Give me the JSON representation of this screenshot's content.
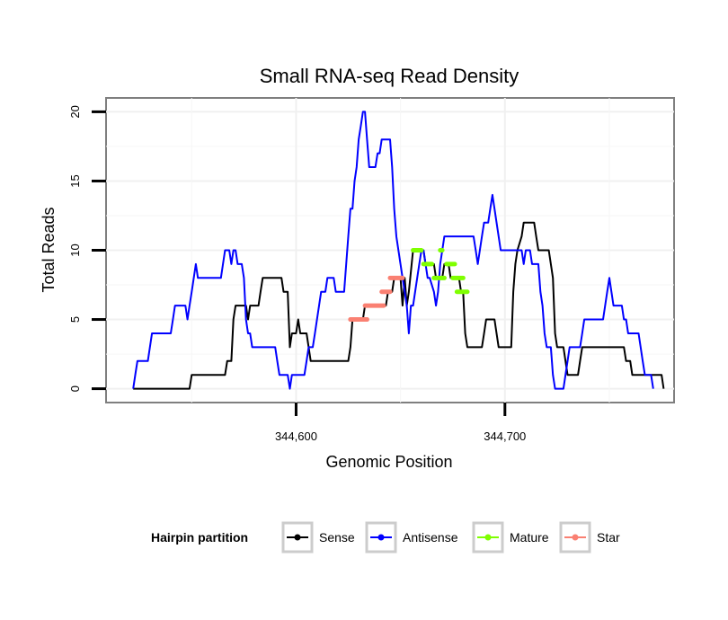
{
  "chart_data": {
    "type": "line",
    "title": "Small RNA-seq Read Density",
    "xlabel": "Genomic Position",
    "ylabel": "Total Reads",
    "xlim": [
      344509,
      344781
    ],
    "ylim": [
      -1,
      21
    ],
    "x_ticks": [
      344600,
      344700
    ],
    "x_tick_labels": [
      "344,600",
      "344,700"
    ],
    "y_ticks": [
      0,
      5,
      10,
      15,
      20
    ],
    "y_tick_labels": [
      "0",
      "5",
      "10",
      "15",
      "20"
    ],
    "grid": true,
    "legend": {
      "title": "Hairpin partition",
      "position": "bottom",
      "entries": [
        {
          "name": "Sense",
          "color": "#000000"
        },
        {
          "name": "Antisense",
          "color": "#0000ff"
        },
        {
          "name": "Mature",
          "color": "#7fff00"
        },
        {
          "name": "Star",
          "color": "#fa8072"
        }
      ]
    },
    "series": [
      {
        "name": "Sense",
        "color": "#000000",
        "points": [
          [
            344522,
            0
          ],
          [
            344549,
            0
          ],
          [
            344550,
            1
          ],
          [
            344566,
            1
          ],
          [
            344567,
            2
          ],
          [
            344569,
            2
          ],
          [
            344570,
            5
          ],
          [
            344571,
            6
          ],
          [
            344576,
            6
          ],
          [
            344577,
            5
          ],
          [
            344578,
            6
          ],
          [
            344582,
            6
          ],
          [
            344583,
            7
          ],
          [
            344584,
            8
          ],
          [
            344593,
            8
          ],
          [
            344594,
            7
          ],
          [
            344596,
            7
          ],
          [
            344597,
            3
          ],
          [
            344598,
            4
          ],
          [
            344600,
            4
          ],
          [
            344601,
            5
          ],
          [
            344602,
            4
          ],
          [
            344605,
            4
          ],
          [
            344606,
            3
          ],
          [
            344607,
            2
          ],
          [
            344625,
            2
          ],
          [
            344626,
            3
          ],
          [
            344627,
            5
          ],
          [
            344632,
            5
          ],
          [
            344633,
            6
          ],
          [
            344643,
            6
          ],
          [
            344644,
            7
          ],
          [
            344646,
            7
          ],
          [
            344647,
            8
          ],
          [
            344650,
            8
          ],
          [
            344651,
            6
          ],
          [
            344652,
            8
          ],
          [
            344653,
            6
          ],
          [
            344654,
            7
          ],
          [
            344656,
            10
          ],
          [
            344661,
            10
          ],
          [
            344662,
            9
          ],
          [
            344666,
            9
          ],
          [
            344667,
            8
          ],
          [
            344670,
            8
          ],
          [
            344671,
            9
          ],
          [
            344673,
            9
          ],
          [
            344674,
            8
          ],
          [
            344678,
            8
          ],
          [
            344679,
            7
          ],
          [
            344680,
            7
          ],
          [
            344681,
            4
          ],
          [
            344682,
            3
          ],
          [
            344689,
            3
          ],
          [
            344690,
            4
          ],
          [
            344691,
            5
          ],
          [
            344695,
            5
          ],
          [
            344696,
            4
          ],
          [
            344697,
            3
          ],
          [
            344703,
            3
          ],
          [
            344704,
            7
          ],
          [
            344705,
            9
          ],
          [
            344706,
            10
          ],
          [
            344708,
            11
          ],
          [
            344709,
            12
          ],
          [
            344714,
            12
          ],
          [
            344715,
            11
          ],
          [
            344716,
            10
          ],
          [
            344721,
            10
          ],
          [
            344722,
            9
          ],
          [
            344723,
            8
          ],
          [
            344724,
            4
          ],
          [
            344725,
            3
          ],
          [
            344728,
            3
          ],
          [
            344729,
            2
          ],
          [
            344730,
            1
          ],
          [
            344735,
            1
          ],
          [
            344736,
            2
          ],
          [
            344737,
            3
          ],
          [
            344757,
            3
          ],
          [
            344758,
            2
          ],
          [
            344760,
            2
          ],
          [
            344761,
            1
          ],
          [
            344775,
            1
          ],
          [
            344776,
            0
          ]
        ]
      },
      {
        "name": "Antisense",
        "color": "#0000ff",
        "points": [
          [
            344522,
            0
          ],
          [
            344523,
            1
          ],
          [
            344524,
            2
          ],
          [
            344529,
            2
          ],
          [
            344530,
            3
          ],
          [
            344531,
            4
          ],
          [
            344540,
            4
          ],
          [
            344541,
            5
          ],
          [
            344542,
            6
          ],
          [
            344547,
            6
          ],
          [
            344548,
            5
          ],
          [
            344549,
            6
          ],
          [
            344550,
            7
          ],
          [
            344552,
            9
          ],
          [
            344553,
            8
          ],
          [
            344564,
            8
          ],
          [
            344565,
            9
          ],
          [
            344566,
            10
          ],
          [
            344568,
            10
          ],
          [
            344569,
            9
          ],
          [
            344570,
            10
          ],
          [
            344571,
            10
          ],
          [
            344572,
            9
          ],
          [
            344574,
            9
          ],
          [
            344575,
            8
          ],
          [
            344576,
            5
          ],
          [
            344577,
            4
          ],
          [
            344578,
            4
          ],
          [
            344579,
            3
          ],
          [
            344590,
            3
          ],
          [
            344591,
            2
          ],
          [
            344592,
            1
          ],
          [
            344596,
            1
          ],
          [
            344597,
            0
          ],
          [
            344598,
            1
          ],
          [
            344604,
            1
          ],
          [
            344605,
            2
          ],
          [
            344606,
            3
          ],
          [
            344608,
            3
          ],
          [
            344609,
            4
          ],
          [
            344610,
            5
          ],
          [
            344611,
            6
          ],
          [
            344612,
            7
          ],
          [
            344614,
            7
          ],
          [
            344615,
            8
          ],
          [
            344618,
            8
          ],
          [
            344619,
            7
          ],
          [
            344623,
            7
          ],
          [
            344624,
            9
          ],
          [
            344625,
            11
          ],
          [
            344626,
            13
          ],
          [
            344627,
            13
          ],
          [
            344628,
            15
          ],
          [
            344629,
            16
          ],
          [
            344630,
            18
          ],
          [
            344631,
            19
          ],
          [
            344632,
            20
          ],
          [
            344633,
            20
          ],
          [
            344634,
            18
          ],
          [
            344635,
            16
          ],
          [
            344638,
            16
          ],
          [
            344639,
            17
          ],
          [
            344640,
            17
          ],
          [
            344641,
            18
          ],
          [
            344645,
            18
          ],
          [
            344646,
            16
          ],
          [
            344647,
            13
          ],
          [
            344648,
            11
          ],
          [
            344650,
            9
          ],
          [
            344651,
            8
          ],
          [
            344652,
            7
          ],
          [
            344653,
            6
          ],
          [
            344654,
            4
          ],
          [
            344655,
            6
          ],
          [
            344656,
            6
          ],
          [
            344657,
            7
          ],
          [
            344658,
            8
          ],
          [
            344659,
            9
          ],
          [
            344660,
            10
          ],
          [
            344661,
            10
          ],
          [
            344662,
            9
          ],
          [
            344663,
            8
          ],
          [
            344664,
            8
          ],
          [
            344666,
            7
          ],
          [
            344667,
            6
          ],
          [
            344668,
            7
          ],
          [
            344669,
            9
          ],
          [
            344670,
            10
          ],
          [
            344671,
            11
          ],
          [
            344685,
            11
          ],
          [
            344686,
            10
          ],
          [
            344687,
            9
          ],
          [
            344688,
            10
          ],
          [
            344689,
            11
          ],
          [
            344690,
            12
          ],
          [
            344692,
            12
          ],
          [
            344693,
            13
          ],
          [
            344694,
            14
          ],
          [
            344695,
            13
          ],
          [
            344696,
            12
          ],
          [
            344697,
            11
          ],
          [
            344698,
            10
          ],
          [
            344708,
            10
          ],
          [
            344709,
            9
          ],
          [
            344710,
            10
          ],
          [
            344712,
            10
          ],
          [
            344713,
            9
          ],
          [
            344716,
            9
          ],
          [
            344717,
            7
          ],
          [
            344718,
            6
          ],
          [
            344719,
            4
          ],
          [
            344720,
            3
          ],
          [
            344722,
            3
          ],
          [
            344723,
            1
          ],
          [
            344724,
            0
          ],
          [
            344728,
            0
          ],
          [
            344729,
            1
          ],
          [
            344730,
            2
          ],
          [
            344731,
            3
          ],
          [
            344736,
            3
          ],
          [
            344737,
            4
          ],
          [
            344738,
            5
          ],
          [
            344747,
            5
          ],
          [
            344748,
            6
          ],
          [
            344749,
            7
          ],
          [
            344750,
            8
          ],
          [
            344751,
            7
          ],
          [
            344752,
            6
          ],
          [
            344756,
            6
          ],
          [
            344757,
            5
          ],
          [
            344758,
            5
          ],
          [
            344759,
            4
          ],
          [
            344764,
            4
          ],
          [
            344765,
            3
          ],
          [
            344766,
            2
          ],
          [
            344767,
            1
          ],
          [
            344770,
            1
          ],
          [
            344771,
            0
          ]
        ]
      },
      {
        "name": "Mature",
        "color": "#7fff00",
        "points": [
          [
            344656,
            10
          ],
          [
            344660,
            10
          ],
          [
            344661,
            9
          ],
          [
            344665,
            9
          ],
          [
            344666,
            8
          ],
          [
            344671,
            8
          ],
          [
            344672,
            9
          ],
          [
            344676,
            9
          ],
          [
            344677,
            8
          ],
          [
            344681,
            8
          ],
          [
            344678,
            7
          ],
          [
            344682,
            7
          ]
        ],
        "segments": [
          [
            344656,
            344660,
            10
          ],
          [
            344661,
            344665,
            9
          ],
          [
            344666,
            344671,
            8
          ],
          [
            344669,
            344670,
            10
          ],
          [
            344672,
            344676,
            9
          ],
          [
            344675,
            344680,
            8
          ],
          [
            344677,
            344682,
            7
          ]
        ]
      },
      {
        "name": "Star",
        "color": "#fa8072",
        "segments": [
          [
            344626,
            344634,
            5
          ],
          [
            344633,
            344642,
            6
          ],
          [
            344641,
            344645,
            7
          ],
          [
            344645,
            344651,
            8
          ]
        ]
      }
    ]
  }
}
